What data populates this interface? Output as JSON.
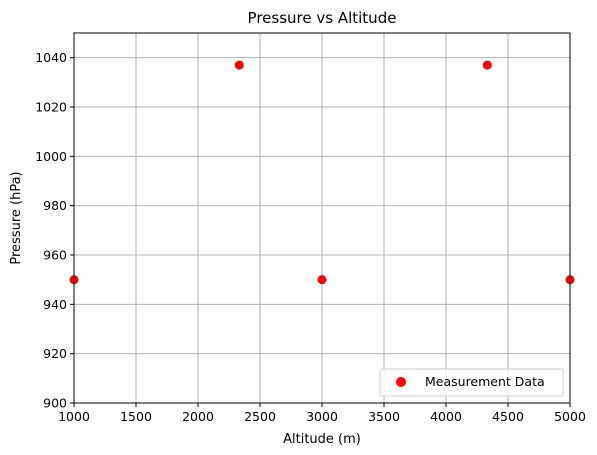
{
  "chart_data": {
    "type": "scatter",
    "title": "Pressure vs Altitude",
    "xlabel": "Altitude (m)",
    "ylabel": "Pressure (hPa)",
    "xlim": [
      1000,
      5000
    ],
    "ylim": [
      900,
      1050
    ],
    "xticks": [
      1000,
      1500,
      2000,
      2500,
      3000,
      3500,
      4000,
      4500,
      5000
    ],
    "yticks": [
      900,
      920,
      940,
      960,
      980,
      1000,
      1020,
      1040
    ],
    "grid": true,
    "legend_position": "lower-right",
    "series": [
      {
        "name": "Measurement Data",
        "color": "#ff0000",
        "x": [
          1000,
          2333,
          3000,
          4333,
          5000
        ],
        "y": [
          950,
          1037,
          950,
          1037,
          950
        ]
      }
    ]
  }
}
